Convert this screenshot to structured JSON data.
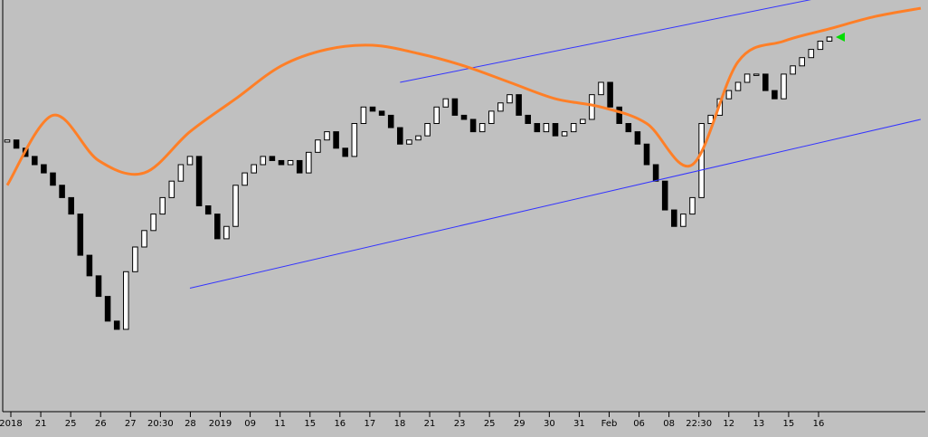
{
  "chart_data": {
    "type": "line",
    "title": "",
    "xlabel": "",
    "ylabel": "",
    "x_tick_labels": [
      "2018",
      "21",
      "25",
      "26",
      "27",
      "20:30",
      "28",
      "2019",
      "09",
      "11",
      "15",
      "16",
      "17",
      "18",
      "21",
      "23",
      "25",
      "29",
      "30",
      "31",
      "Feb",
      "06",
      "08",
      "22:30",
      "12",
      "13",
      "15",
      "16"
    ],
    "x_index_range": [
      0,
      100
    ],
    "y_range": [
      0,
      100
    ],
    "grid": false,
    "legend": "none",
    "series": [
      {
        "kind": "candles",
        "x": [
          0,
          1,
          2,
          3,
          4,
          5,
          6,
          7,
          8,
          9,
          10,
          11,
          12,
          13,
          14,
          15,
          16,
          17,
          18,
          19,
          20,
          21,
          22,
          23,
          24,
          25,
          26,
          27,
          28,
          29,
          30,
          31,
          32,
          33,
          34,
          35,
          36,
          37,
          38,
          39,
          40,
          41,
          42,
          43,
          44,
          45,
          46,
          47,
          48,
          49,
          50,
          51,
          52,
          53,
          54,
          55,
          56,
          57,
          58,
          59,
          60,
          61,
          62,
          63,
          64,
          65,
          66,
          67,
          68,
          69,
          70,
          71,
          72,
          73,
          74,
          75,
          76,
          77,
          78,
          79,
          80,
          81,
          82,
          83,
          84,
          85,
          86,
          87,
          88,
          89,
          90
        ],
        "close": [
          66,
          64,
          62,
          60,
          58,
          55,
          52,
          48,
          38,
          33,
          28,
          22,
          20,
          34,
          40,
          44,
          48,
          52,
          56,
          60,
          62,
          50,
          48,
          42,
          45,
          55,
          58,
          60,
          62,
          61,
          60,
          61,
          58,
          63,
          66,
          68,
          64,
          62,
          70,
          74,
          73,
          72,
          69,
          65,
          66,
          67,
          70,
          74,
          76,
          72,
          71,
          68,
          70,
          73,
          75,
          77,
          72,
          70,
          68,
          70,
          67,
          68,
          70,
          71,
          77,
          80,
          74,
          70,
          68,
          65,
          60,
          56,
          49,
          45,
          48,
          52,
          70,
          72,
          76,
          78,
          80,
          82,
          82,
          78,
          76,
          82,
          84,
          86,
          88,
          90,
          91
        ]
      },
      {
        "kind": "curve",
        "name": "",
        "color": "#ff7f27",
        "x": [
          0,
          5,
          10,
          15,
          20,
          25,
          30,
          35,
          40,
          45,
          50,
          55,
          60,
          65,
          70,
          75,
          80,
          85,
          90,
          95,
          100
        ],
        "y": [
          55,
          72,
          61,
          58,
          68,
          76,
          84,
          88,
          89,
          87,
          84,
          80,
          76,
          74,
          70,
          60,
          85,
          90,
          93,
          96,
          98
        ]
      },
      {
        "kind": "trendline",
        "name": "",
        "color": "#3333ff",
        "x": [
          43,
          90
        ],
        "y": [
          80,
          101
        ]
      },
      {
        "kind": "trendline",
        "name": "",
        "color": "#3333ff",
        "x": [
          20,
          100
        ],
        "y": [
          30,
          71
        ]
      }
    ],
    "marker_color": "#00dd00"
  }
}
